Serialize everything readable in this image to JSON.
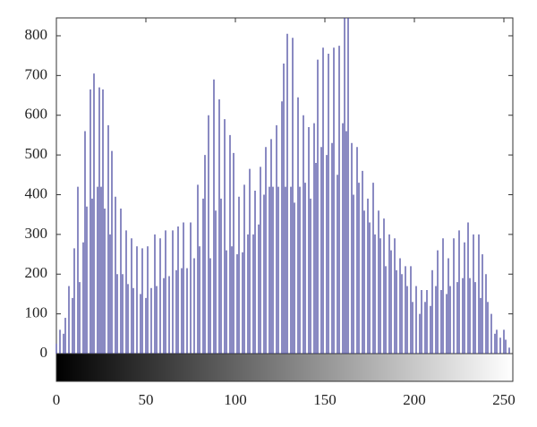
{
  "chart_data": {
    "type": "stem",
    "color": "#3c3c9a",
    "x": [
      0,
      2,
      4,
      5,
      7,
      9,
      10,
      12,
      13,
      15,
      16,
      17,
      19,
      20,
      21,
      23,
      24,
      25,
      26,
      27,
      29,
      30,
      31,
      33,
      34,
      36,
      37,
      39,
      40,
      42,
      43,
      45,
      47,
      48,
      50,
      51,
      53,
      55,
      56,
      58,
      60,
      61,
      63,
      65,
      67,
      68,
      70,
      71,
      73,
      75,
      77,
      79,
      80,
      82,
      83,
      85,
      86,
      88,
      89,
      91,
      92,
      94,
      95,
      97,
      98,
      99,
      101,
      102,
      104,
      105,
      107,
      108,
      110,
      111,
      113,
      114,
      116,
      117,
      119,
      120,
      121,
      123,
      124,
      126,
      127,
      128,
      129,
      131,
      132,
      133,
      135,
      136,
      138,
      139,
      141,
      142,
      144,
      145,
      146,
      148,
      149,
      151,
      152,
      154,
      155,
      157,
      158,
      160,
      161,
      162,
      163,
      165,
      166,
      168,
      169,
      171,
      172,
      174,
      175,
      177,
      178,
      180,
      181,
      183,
      184,
      186,
      187,
      189,
      190,
      192,
      193,
      195,
      196,
      198,
      199,
      201,
      203,
      204,
      206,
      207,
      209,
      210,
      212,
      213,
      215,
      216,
      218,
      219,
      220,
      222,
      224,
      225,
      227,
      228,
      230,
      231,
      233,
      234,
      236,
      237,
      238,
      240,
      241,
      243,
      245,
      246,
      248,
      250,
      251,
      253
    ],
    "values": [
      25,
      60,
      50,
      90,
      170,
      140,
      265,
      420,
      180,
      280,
      560,
      370,
      665,
      390,
      705,
      420,
      670,
      420,
      665,
      365,
      575,
      300,
      510,
      395,
      200,
      365,
      200,
      310,
      175,
      290,
      165,
      270,
      150,
      265,
      140,
      270,
      165,
      300,
      170,
      290,
      190,
      310,
      195,
      310,
      210,
      320,
      215,
      330,
      215,
      330,
      240,
      425,
      270,
      390,
      500,
      600,
      240,
      690,
      360,
      640,
      390,
      590,
      260,
      550,
      270,
      505,
      250,
      395,
      255,
      425,
      300,
      465,
      300,
      410,
      325,
      470,
      400,
      520,
      420,
      540,
      420,
      575,
      420,
      635,
      730,
      420,
      805,
      420,
      795,
      380,
      645,
      420,
      600,
      430,
      570,
      390,
      580,
      480,
      740,
      520,
      770,
      500,
      755,
      530,
      770,
      450,
      775,
      580,
      845,
      560,
      845,
      530,
      400,
      520,
      430,
      460,
      360,
      390,
      330,
      430,
      300,
      360,
      290,
      340,
      220,
      300,
      260,
      290,
      210,
      240,
      200,
      220,
      170,
      220,
      130,
      170,
      100,
      160,
      130,
      160,
      120,
      210,
      170,
      260,
      160,
      290,
      150,
      240,
      170,
      290,
      180,
      310,
      190,
      280,
      330,
      190,
      300,
      180,
      300,
      140,
      250,
      200,
      130,
      100,
      50,
      60,
      40,
      60,
      35,
      15
    ],
    "xlim": [
      0,
      255
    ],
    "ylim": [
      0,
      845
    ],
    "xticks": [
      0,
      50,
      100,
      150,
      200,
      250
    ],
    "yticks": [
      0,
      100,
      200,
      300,
      400,
      500,
      600,
      700,
      800
    ]
  }
}
